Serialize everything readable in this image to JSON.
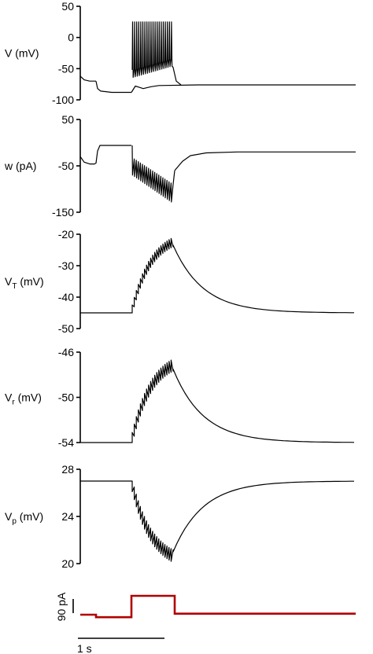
{
  "chart_data": [
    {
      "type": "line",
      "ylabel": {
        "main": "V",
        "sub": "",
        "unit": " (mV)"
      },
      "ylim": [
        -100,
        50
      ],
      "yticks": [
        50,
        0,
        -50,
        -100
      ],
      "series": [
        {
          "segments": [
            {
              "t": [
                0,
                0.05,
                0.12,
                0.18,
                0.2
              ],
              "y": [
                -62,
                -68,
                -70,
                -70,
                -70
              ]
            },
            {
              "t": [
                0.2,
                0.22,
                0.26,
                0.4,
                0.6,
                0.65
              ],
              "y": [
                -70,
                -82,
                -86,
                -88,
                -88,
                -88
              ]
            },
            {
              "t": [
                0.65,
                0.7,
                0.75,
                0.8,
                0.9,
                1.0,
                1.5,
                2.0,
                3.5
              ],
              "y": [
                -88,
                -78,
                -80,
                -82,
                -79,
                -77,
                -76,
                -76,
                -76
              ]
            }
          ]
        },
        {
          "spike_train": {
            "t_start": 0.66,
            "t_end": 1.18,
            "count": 20,
            "peak": 25,
            "trough_start": -52,
            "trough_end": -34
          }
        }
      ]
    },
    {
      "type": "line",
      "ylabel": {
        "main": "w",
        "sub": "",
        "unit": " (pA)"
      },
      "ylim": [
        -150,
        50
      ],
      "yticks": [
        50,
        -50,
        -150
      ],
      "series": [
        {
          "segments": [
            {
              "t": [
                0,
                0.05,
                0.12,
                0.18,
                0.2,
                0.22,
                0.25,
                0.6,
                0.65
              ],
              "y": [
                -30,
                -42,
                -46,
                -46,
                -44,
                -18,
                -6,
                -6,
                -6
              ]
            },
            {
              "t": [
                1.2,
                1.3,
                1.4,
                1.6,
                2.0,
                2.5,
                3.5
              ],
              "y": [
                -60,
                -40,
                -28,
                -22,
                -20,
                -20,
                -20
              ]
            }
          ]
        },
        {
          "spike_train": {
            "t_start": 0.66,
            "t_end": 1.18,
            "count": 20,
            "env_high_start": -35,
            "env_high_end": -90,
            "env_low_start": -70,
            "env_low_end": -128
          }
        }
      ]
    },
    {
      "type": "line",
      "ylabel": {
        "main": "V",
        "sub": "T",
        "unit": " (mV)"
      },
      "ylim": [
        -50,
        -20
      ],
      "yticks": [
        -20,
        -30,
        -40,
        -50
      ],
      "series": [
        {
          "sawtooth": {
            "t_start": 0.66,
            "t_end": 1.18,
            "baseline": -45,
            "level_end": -23.5,
            "count": 20,
            "amp": 2.5,
            "tau": 0.25,
            "tail_tau": 0.38,
            "t_stop": 3.5
          }
        }
      ]
    },
    {
      "type": "line",
      "ylabel": {
        "main": "V",
        "sub": "r",
        "unit": " (mV)"
      },
      "ylim": [
        -54,
        -46
      ],
      "yticks": [
        -46,
        -50,
        -54
      ],
      "series": [
        {
          "sawtooth": {
            "t_start": 0.66,
            "t_end": 1.18,
            "baseline": -54,
            "level_end": -47.5,
            "count": 20,
            "amp": 0.9,
            "tau": 0.25,
            "tail_tau": 0.38,
            "t_stop": 3.5
          }
        }
      ]
    },
    {
      "type": "line",
      "ylabel": {
        "main": "V",
        "sub": "p",
        "unit": " (mV)"
      },
      "ylim": [
        20,
        28
      ],
      "yticks": [
        28,
        24,
        20
      ],
      "series": [
        {
          "sawtooth": {
            "t_start": 0.66,
            "t_end": 1.18,
            "baseline": 27,
            "level_end": 21,
            "count": 20,
            "amp": -0.9,
            "tau": 0.25,
            "tail_tau": 0.38,
            "t_stop": 3.5
          }
        }
      ]
    }
  ],
  "stimulus": {
    "color": "#b00000",
    "steps": [
      {
        "t0": 0,
        "t1": 0.2,
        "level": 0
      },
      {
        "t0": 0.2,
        "t1": 0.65,
        "level": -12
      },
      {
        "t0": 0.65,
        "t1": 1.2,
        "level": 90
      },
      {
        "t0": 1.2,
        "t1": 3.5,
        "level": 5
      }
    ],
    "scale_label": "90 pA",
    "scale_value": 90
  },
  "time_scale": {
    "label": "1 s",
    "value": 1
  }
}
